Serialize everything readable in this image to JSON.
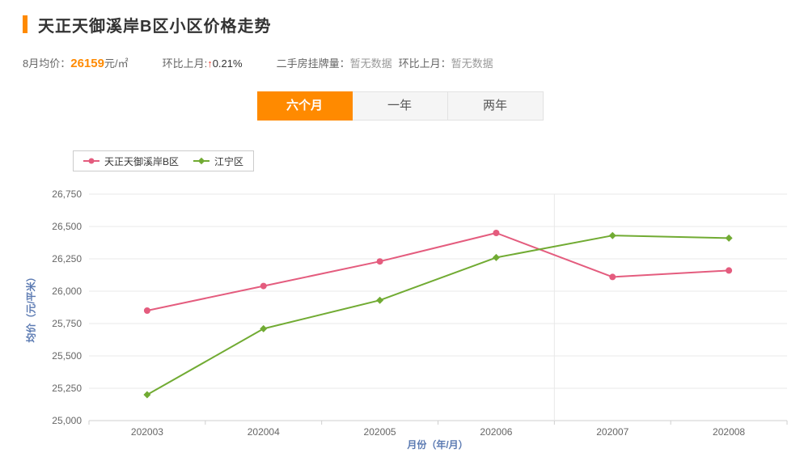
{
  "page": {
    "title": "天正天御溪岸B区小区价格走势"
  },
  "stats": {
    "avg_label": "8月均价：",
    "avg_value": "26159",
    "avg_unit": "元/㎡",
    "mom_label": "环比上月:",
    "mom_arrow": "↑",
    "mom_value": "0.21%",
    "listing_label": "二手房挂牌量：",
    "listing_value": "暂无数据",
    "listing_mom_label": "环比上月：",
    "listing_mom_value": "暂无数据"
  },
  "tabs": [
    {
      "label": "六个月",
      "active": true
    },
    {
      "label": "一年",
      "active": false
    },
    {
      "label": "两年",
      "active": false
    }
  ],
  "colors": {
    "accent": "#ff8a00",
    "up_arrow": "#f04134",
    "axis_title": "#5b7ab2",
    "series_community": "#e45c7e",
    "series_district": "#71ab33"
  },
  "chart_data": {
    "type": "line",
    "x": [
      "202003",
      "202004",
      "202005",
      "202006",
      "202007",
      "202008"
    ],
    "series": [
      {
        "name": "天正天御溪岸B区",
        "color": "#e45c7e",
        "marker": "circle",
        "values": [
          25850,
          26040,
          26230,
          26450,
          26110,
          26160
        ]
      },
      {
        "name": "江宁区",
        "color": "#71ab33",
        "marker": "diamond",
        "values": [
          25200,
          25710,
          25930,
          26260,
          26430,
          26410
        ]
      }
    ],
    "title": "天正天御溪岸B区小区价格走势",
    "xlabel": "月份（年/月）",
    "ylabel": "均价（元/平米）",
    "ylim": [
      25000,
      26750
    ],
    "ytick_step": 250,
    "yticks": [
      "25,000",
      "25,250",
      "25,500",
      "25,750",
      "26,000",
      "26,250",
      "26,500",
      "26,750"
    ],
    "grid": true,
    "legend_position": "top-left",
    "vertical_gridline_boundary_index": 4
  }
}
